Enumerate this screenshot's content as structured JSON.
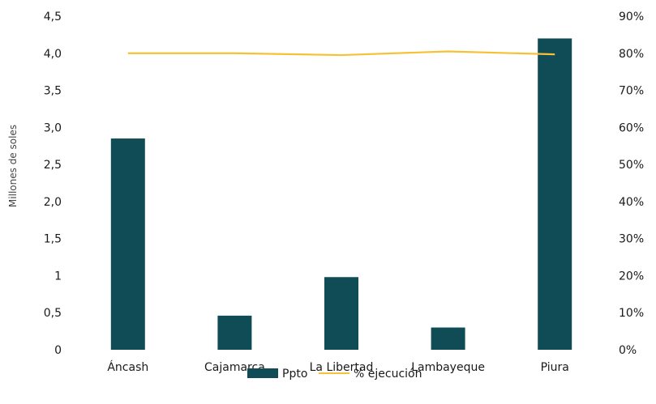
{
  "chart_data": {
    "type": "bar",
    "categories": [
      "Áncash",
      "Cajamarca",
      "La Libertad",
      "Lambayeque",
      "Piura"
    ],
    "series": [
      {
        "name": "Ppto",
        "type": "bar",
        "axis": "left",
        "color": "#0f4c55",
        "values": [
          2.85,
          0.46,
          0.98,
          0.3,
          4.2
        ]
      },
      {
        "name": "% ejecución",
        "type": "line",
        "axis": "right",
        "color": "#f7c136",
        "values": [
          0.8,
          0.8,
          0.795,
          0.805,
          0.797
        ]
      }
    ],
    "ylabel": "Millones de soles",
    "ylim": [
      0,
      4.5
    ],
    "y2lim": [
      0,
      0.9
    ],
    "y_ticks": [
      "0",
      "0,5",
      "1",
      "1,5",
      "2,0",
      "2,5",
      "3,0",
      "3,5",
      "4,0",
      "4,5"
    ],
    "y2_ticks": [
      "0%",
      "10%",
      "20%",
      "30%",
      "40%",
      "50%",
      "60%",
      "70%",
      "80%",
      "90%"
    ],
    "grid": false,
    "legend_position": "bottom"
  }
}
